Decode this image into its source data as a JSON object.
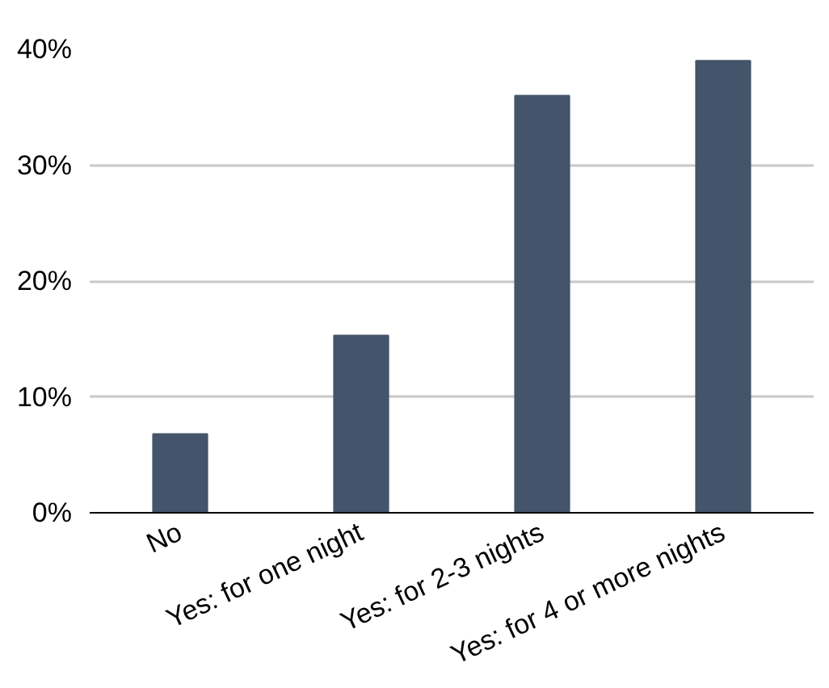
{
  "chart_data": {
    "type": "bar",
    "categories": [
      "No",
      "Yes: for one night",
      "Yes: for 2-3 nights",
      "Yes: for 4 or more nights"
    ],
    "values": [
      6.8,
      15.3,
      36,
      39
    ],
    "color": "#44546a",
    "ylim": [
      0,
      40
    ],
    "yticks": [
      {
        "value": 0,
        "label": "0%"
      },
      {
        "value": 10,
        "label": "10%"
      },
      {
        "value": 20,
        "label": "20%"
      },
      {
        "value": 30,
        "label": "30%"
      },
      {
        "value": 40,
        "label": "40%"
      }
    ],
    "grid": "y"
  }
}
